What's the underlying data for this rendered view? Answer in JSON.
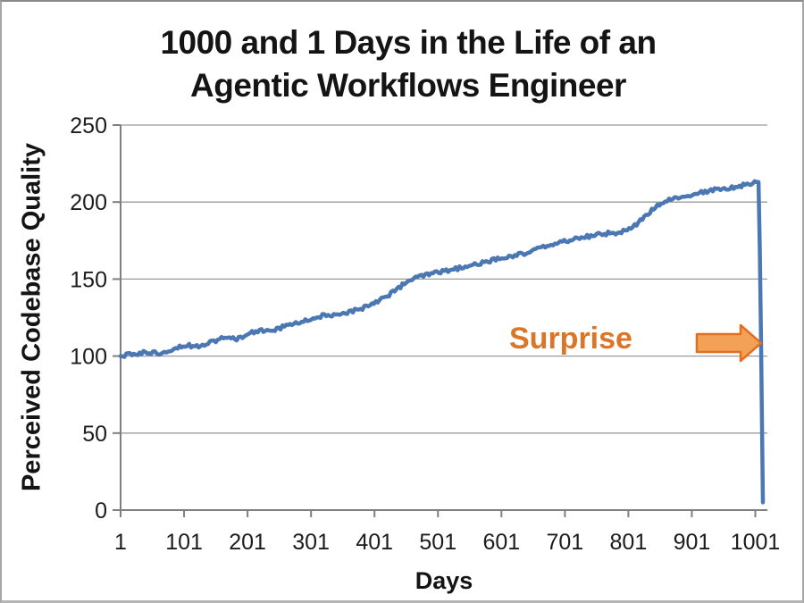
{
  "frame": {
    "background": "#ffffff",
    "border_color": "#a6a6a6"
  },
  "title": {
    "line1": "1000 and 1 Days in the Life of an",
    "line2": "Agentic Workflows Engineer"
  },
  "annotation": {
    "label": "Surprise",
    "label_color": "#DB7628",
    "arrow_fill": "#F4A158",
    "arrow_stroke": "#E06F1F",
    "arrow_points_at": "crash-drop-line"
  },
  "chart_data": {
    "type": "line",
    "title": "1000 and 1 Days in the Life of an Agentic Workflows Engineer",
    "xlabel": "Days",
    "ylabel": "Perceived Codebase Quality",
    "x_ticks": [
      1,
      101,
      201,
      301,
      401,
      501,
      601,
      701,
      801,
      901,
      1001
    ],
    "y_ticks": [
      0,
      50,
      100,
      150,
      200,
      250
    ],
    "xlim": [
      1,
      1020
    ],
    "ylim": [
      0,
      250
    ],
    "grid": "horizontal-only",
    "legend": "none",
    "line_color": "#4B78B3",
    "gridline_color": "#9B9B9B",
    "axis_color": "#7F7F7F",
    "series": [
      {
        "name": "Perceived Codebase Quality",
        "points": [
          [
            1,
            100
          ],
          [
            21,
            101
          ],
          [
            41,
            102.5
          ],
          [
            61,
            102
          ],
          [
            81,
            104.5
          ],
          [
            101,
            107
          ],
          [
            121,
            106.5
          ],
          [
            141,
            109
          ],
          [
            161,
            111.5
          ],
          [
            181,
            111
          ],
          [
            201,
            114
          ],
          [
            221,
            117
          ],
          [
            241,
            116
          ],
          [
            261,
            120
          ],
          [
            281,
            121.5
          ],
          [
            301,
            124
          ],
          [
            321,
            126.5
          ],
          [
            341,
            126
          ],
          [
            361,
            128.5
          ],
          [
            381,
            131
          ],
          [
            401,
            135
          ],
          [
            421,
            139
          ],
          [
            441,
            145
          ],
          [
            461,
            150
          ],
          [
            481,
            152.5
          ],
          [
            501,
            154
          ],
          [
            521,
            156
          ],
          [
            541,
            157.5
          ],
          [
            561,
            159.5
          ],
          [
            581,
            161.5
          ],
          [
            601,
            163.5
          ],
          [
            621,
            165.5
          ],
          [
            641,
            167
          ],
          [
            661,
            170
          ],
          [
            681,
            172.5
          ],
          [
            701,
            174.5
          ],
          [
            721,
            176.5
          ],
          [
            741,
            178
          ],
          [
            761,
            179.5
          ],
          [
            781,
            180
          ],
          [
            801,
            181.5
          ],
          [
            821,
            188
          ],
          [
            841,
            196
          ],
          [
            861,
            200.5
          ],
          [
            881,
            203
          ],
          [
            901,
            205
          ],
          [
            921,
            206.5
          ],
          [
            941,
            208.5
          ],
          [
            961,
            209
          ],
          [
            981,
            211
          ],
          [
            1001,
            212.5
          ],
          [
            1003,
            213
          ],
          [
            1006,
            213
          ],
          [
            1008,
            170
          ],
          [
            1010,
            110
          ],
          [
            1012,
            40
          ],
          [
            1013,
            5
          ]
        ]
      }
    ]
  }
}
